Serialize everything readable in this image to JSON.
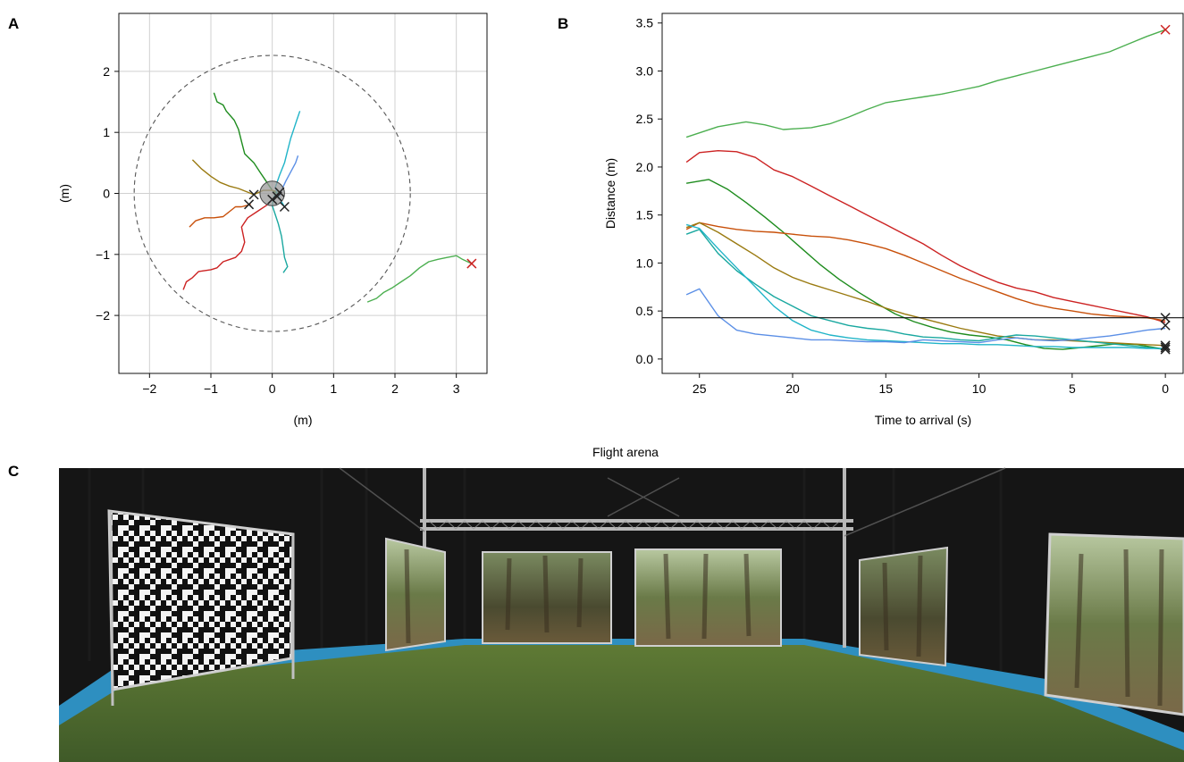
{
  "panel_labels": {
    "a": "A",
    "b": "B",
    "c": "C"
  },
  "photo_caption": "Flight arena",
  "colors": {
    "green_light": "#4caf50",
    "red": "#cc2222",
    "green_dark": "#1e8c1e",
    "orange": "#c8500a",
    "olive": "#9a7a10",
    "teal": "#1aa8a0",
    "cyan": "#20b4c8",
    "blue": "#5b8fe6",
    "marker_red": "#cc2222",
    "marker_black": "#222222",
    "grid": "#d0d0d0"
  },
  "chart_data": [
    {
      "type": "scatter",
      "panel": "A",
      "xlabel": "(m)",
      "ylabel": "(m)",
      "xlim": [
        -2.5,
        3.5
      ],
      "ylim": [
        -2.95,
        2.95
      ],
      "xticks": [
        -2,
        -1,
        0,
        1,
        2,
        3
      ],
      "yticks": [
        -2,
        -1,
        0,
        1,
        2
      ],
      "xtick_labels": [
        "−2",
        "−1",
        "0",
        "1",
        "2",
        "3"
      ],
      "ytick_labels": [
        "−2",
        "−1",
        "0",
        "1",
        "2"
      ],
      "grid": true,
      "boundary_circle": {
        "cx": 0,
        "cy": 0,
        "r": 2.25,
        "style": "dashed"
      },
      "target_circle": {
        "cx": 0,
        "cy": 0,
        "r": 0.2
      },
      "series": [
        {
          "color_key": "green_light",
          "points": [
            [
              1.55,
              -1.78
            ],
            [
              1.7,
              -1.72
            ],
            [
              1.82,
              -1.62
            ],
            [
              1.95,
              -1.55
            ],
            [
              2.1,
              -1.45
            ],
            [
              2.25,
              -1.35
            ],
            [
              2.4,
              -1.22
            ],
            [
              2.55,
              -1.12
            ],
            [
              2.7,
              -1.08
            ],
            [
              2.85,
              -1.05
            ],
            [
              3.0,
              -1.02
            ],
            [
              3.1,
              -1.08
            ],
            [
              3.25,
              -1.15
            ]
          ]
        },
        {
          "color_key": "red",
          "points": [
            [
              -1.45,
              -1.58
            ],
            [
              -1.4,
              -1.45
            ],
            [
              -1.3,
              -1.38
            ],
            [
              -1.2,
              -1.28
            ],
            [
              -1.0,
              -1.25
            ],
            [
              -0.9,
              -1.22
            ],
            [
              -0.8,
              -1.12
            ],
            [
              -0.6,
              -1.05
            ],
            [
              -0.5,
              -0.95
            ],
            [
              -0.45,
              -0.8
            ],
            [
              -0.5,
              -0.55
            ],
            [
              -0.4,
              -0.4
            ],
            [
              -0.25,
              -0.3
            ],
            [
              -0.1,
              -0.2
            ],
            [
              0.05,
              -0.05
            ]
          ]
        },
        {
          "color_key": "green_dark",
          "points": [
            [
              -0.95,
              1.65
            ],
            [
              -0.9,
              1.5
            ],
            [
              -0.8,
              1.45
            ],
            [
              -0.75,
              1.35
            ],
            [
              -0.62,
              1.2
            ],
            [
              -0.55,
              1.05
            ],
            [
              -0.5,
              0.85
            ],
            [
              -0.45,
              0.65
            ],
            [
              -0.3,
              0.5
            ],
            [
              -0.2,
              0.35
            ],
            [
              -0.1,
              0.2
            ],
            [
              0.0,
              0.05
            ],
            [
              0.08,
              0.0
            ]
          ]
        },
        {
          "color_key": "orange",
          "points": [
            [
              -1.35,
              -0.55
            ],
            [
              -1.25,
              -0.45
            ],
            [
              -1.1,
              -0.4
            ],
            [
              -0.95,
              -0.4
            ],
            [
              -0.8,
              -0.38
            ],
            [
              -0.7,
              -0.3
            ],
            [
              -0.6,
              -0.22
            ],
            [
              -0.5,
              -0.22
            ],
            [
              -0.35,
              -0.18
            ]
          ]
        },
        {
          "color_key": "olive",
          "points": [
            [
              -1.3,
              0.55
            ],
            [
              -1.15,
              0.4
            ],
            [
              -1.0,
              0.28
            ],
            [
              -0.85,
              0.18
            ],
            [
              -0.7,
              0.12
            ],
            [
              -0.55,
              0.08
            ],
            [
              -0.4,
              0.02
            ],
            [
              -0.3,
              -0.02
            ],
            [
              -0.15,
              0.05
            ],
            [
              0.0,
              0.05
            ],
            [
              0.12,
              0.02
            ]
          ]
        },
        {
          "color_key": "teal",
          "points": [
            [
              0.18,
              -1.3
            ],
            [
              0.25,
              -1.2
            ],
            [
              0.2,
              -1.05
            ],
            [
              0.18,
              -0.9
            ],
            [
              0.15,
              -0.7
            ],
            [
              0.1,
              -0.5
            ],
            [
              0.05,
              -0.35
            ],
            [
              0.0,
              -0.2
            ],
            [
              0.02,
              -0.08
            ],
            [
              0.05,
              0.0
            ]
          ]
        },
        {
          "color_key": "cyan",
          "points": [
            [
              0.45,
              1.35
            ],
            [
              0.4,
              1.2
            ],
            [
              0.35,
              1.05
            ],
            [
              0.3,
              0.9
            ],
            [
              0.25,
              0.7
            ],
            [
              0.2,
              0.5
            ],
            [
              0.12,
              0.3
            ],
            [
              0.05,
              0.1
            ],
            [
              0.1,
              -0.05
            ],
            [
              0.2,
              -0.22
            ]
          ]
        },
        {
          "color_key": "blue",
          "points": [
            [
              0.42,
              0.62
            ],
            [
              0.38,
              0.5
            ],
            [
              0.3,
              0.35
            ],
            [
              0.22,
              0.2
            ],
            [
              0.15,
              0.05
            ],
            [
              0.12,
              -0.05
            ]
          ]
        }
      ],
      "endpoints": [
        {
          "x": 3.25,
          "y": -1.15,
          "color_key": "marker_red"
        },
        {
          "x": -0.38,
          "y": -0.18,
          "color_key": "marker_black"
        },
        {
          "x": -0.3,
          "y": -0.02,
          "color_key": "marker_black"
        },
        {
          "x": 0.08,
          "y": -0.05,
          "color_key": "marker_black"
        },
        {
          "x": 0.12,
          "y": 0.02,
          "color_key": "marker_black"
        },
        {
          "x": 0.2,
          "y": -0.22,
          "color_key": "marker_black"
        },
        {
          "x": 0.0,
          "y": -0.1,
          "color_key": "marker_black"
        }
      ]
    },
    {
      "type": "line",
      "panel": "B",
      "xlabel": "Time to arrival (s)",
      "ylabel": "Distance (m)",
      "xlim": [
        27,
        -1
      ],
      "ylim": [
        -0.15,
        3.6
      ],
      "xticks": [
        25,
        20,
        15,
        10,
        5,
        0
      ],
      "yticks": [
        0.0,
        0.5,
        1.0,
        1.5,
        2.0,
        2.5,
        3.0,
        3.5
      ],
      "xtick_labels": [
        "25",
        "20",
        "15",
        "10",
        "5",
        "0"
      ],
      "ytick_labels": [
        "0.0",
        "0.5",
        "1.0",
        "1.5",
        "2.0",
        "2.5",
        "3.0",
        "3.5"
      ],
      "grid": false,
      "hline": 0.43,
      "series": [
        {
          "color_key": "green_light",
          "x": [
            25.7,
            24,
            22.5,
            21.5,
            20.5,
            19,
            18,
            17,
            16,
            15,
            14,
            13,
            12,
            11,
            10,
            9,
            8,
            7,
            6,
            5,
            4,
            3,
            2,
            1,
            0
          ],
          "y": [
            2.31,
            2.42,
            2.47,
            2.44,
            2.39,
            2.41,
            2.45,
            2.52,
            2.6,
            2.67,
            2.7,
            2.73,
            2.76,
            2.8,
            2.84,
            2.9,
            2.95,
            3.0,
            3.05,
            3.1,
            3.15,
            3.2,
            3.28,
            3.36,
            3.43
          ]
        },
        {
          "color_key": "red",
          "x": [
            25.7,
            25,
            24,
            23,
            22,
            21,
            20,
            19,
            18,
            17,
            16,
            15,
            14,
            13,
            12,
            11,
            10,
            9,
            8,
            7,
            6,
            5,
            4,
            3,
            2,
            1,
            0
          ],
          "y": [
            2.05,
            2.15,
            2.17,
            2.16,
            2.1,
            1.97,
            1.9,
            1.8,
            1.7,
            1.6,
            1.5,
            1.4,
            1.3,
            1.2,
            1.08,
            0.97,
            0.88,
            0.8,
            0.74,
            0.7,
            0.64,
            0.6,
            0.56,
            0.52,
            0.48,
            0.44,
            0.38
          ]
        },
        {
          "color_key": "green_dark",
          "x": [
            25.7,
            24.5,
            23.5,
            22.5,
            21.5,
            20.5,
            19.5,
            18.5,
            17.5,
            16.5,
            15.5,
            14.5,
            13.5,
            12.5,
            11.5,
            10.5,
            9.5,
            8.5,
            7.5,
            6.5,
            5.5,
            4.5,
            3.5,
            2.5,
            1.5,
            0
          ],
          "y": [
            1.83,
            1.87,
            1.77,
            1.63,
            1.48,
            1.32,
            1.15,
            0.98,
            0.83,
            0.7,
            0.58,
            0.47,
            0.39,
            0.33,
            0.28,
            0.25,
            0.23,
            0.2,
            0.15,
            0.11,
            0.1,
            0.12,
            0.14,
            0.16,
            0.15,
            0.1
          ]
        },
        {
          "color_key": "orange",
          "x": [
            25.7,
            25,
            24,
            23,
            22,
            21,
            20,
            19,
            18,
            17,
            16,
            15,
            14,
            13,
            12,
            11,
            10,
            9,
            8,
            7,
            6,
            5,
            4,
            3,
            2,
            1,
            0
          ],
          "y": [
            1.35,
            1.42,
            1.38,
            1.35,
            1.33,
            1.32,
            1.3,
            1.28,
            1.27,
            1.24,
            1.2,
            1.15,
            1.08,
            1.0,
            0.92,
            0.84,
            0.77,
            0.7,
            0.63,
            0.57,
            0.53,
            0.5,
            0.47,
            0.45,
            0.44,
            0.43,
            0.4
          ]
        },
        {
          "color_key": "olive",
          "x": [
            25.7,
            25,
            24,
            23,
            22,
            21,
            20,
            19,
            18,
            17,
            16,
            15,
            14,
            13,
            12,
            11,
            10,
            9,
            8,
            7,
            6,
            5,
            4,
            3,
            2,
            1,
            0
          ],
          "y": [
            1.37,
            1.42,
            1.32,
            1.2,
            1.08,
            0.95,
            0.85,
            0.78,
            0.72,
            0.66,
            0.6,
            0.53,
            0.47,
            0.42,
            0.37,
            0.32,
            0.28,
            0.24,
            0.22,
            0.2,
            0.2,
            0.19,
            0.18,
            0.17,
            0.16,
            0.15,
            0.14
          ]
        },
        {
          "color_key": "teal",
          "x": [
            25.7,
            25,
            24,
            23,
            22,
            21,
            20,
            19,
            18,
            17,
            16,
            15,
            14,
            13,
            12,
            11,
            10,
            9,
            8,
            7,
            6,
            5,
            4,
            3,
            2,
            1,
            0
          ],
          "y": [
            1.3,
            1.35,
            1.1,
            0.92,
            0.78,
            0.65,
            0.55,
            0.45,
            0.4,
            0.35,
            0.32,
            0.3,
            0.26,
            0.23,
            0.22,
            0.2,
            0.19,
            0.22,
            0.25,
            0.24,
            0.22,
            0.2,
            0.18,
            0.16,
            0.14,
            0.12,
            0.1
          ]
        },
        {
          "color_key": "cyan",
          "x": [
            25.7,
            25,
            24,
            23,
            22,
            21,
            20,
            19,
            18,
            17,
            16,
            15,
            14,
            13,
            12,
            11,
            10,
            9,
            8,
            7,
            6,
            5,
            4,
            3,
            2,
            1,
            0
          ],
          "y": [
            1.4,
            1.36,
            1.15,
            0.95,
            0.75,
            0.55,
            0.4,
            0.3,
            0.25,
            0.22,
            0.2,
            0.19,
            0.18,
            0.17,
            0.16,
            0.16,
            0.15,
            0.15,
            0.14,
            0.13,
            0.13,
            0.12,
            0.12,
            0.12,
            0.12,
            0.11,
            0.11
          ]
        },
        {
          "color_key": "blue",
          "x": [
            25.7,
            25,
            24,
            23,
            22,
            21,
            20,
            19,
            18,
            17,
            16,
            15,
            14,
            13,
            12,
            11,
            10,
            9,
            8,
            7,
            6,
            5,
            4,
            3,
            2,
            1,
            0
          ],
          "y": [
            0.67,
            0.73,
            0.45,
            0.3,
            0.26,
            0.24,
            0.22,
            0.2,
            0.2,
            0.19,
            0.18,
            0.18,
            0.17,
            0.2,
            0.19,
            0.18,
            0.17,
            0.2,
            0.22,
            0.2,
            0.19,
            0.2,
            0.22,
            0.24,
            0.27,
            0.3,
            0.32
          ]
        }
      ],
      "endpoints": [
        {
          "x": 0,
          "y": 3.43,
          "color_key": "marker_red"
        },
        {
          "x": 0,
          "y": 0.43,
          "color_key": "marker_black"
        },
        {
          "x": 0,
          "y": 0.35,
          "color_key": "marker_black"
        },
        {
          "x": 0,
          "y": 0.14,
          "color_key": "marker_black"
        },
        {
          "x": 0,
          "y": 0.12,
          "color_key": "marker_black"
        },
        {
          "x": 0,
          "y": 0.1,
          "color_key": "marker_black"
        }
      ]
    }
  ]
}
